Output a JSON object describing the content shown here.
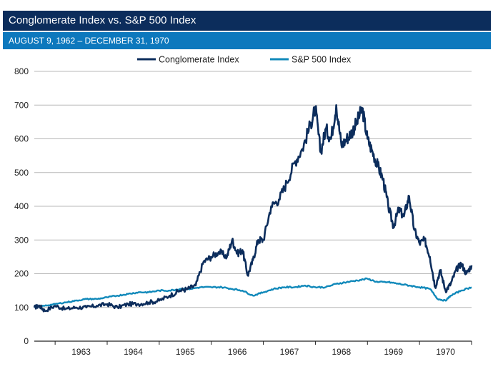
{
  "header": {
    "title": "Conglomerate Index vs. S&P 500 Index",
    "subtitle": "AUGUST 9, 1962 – DECEMBER 31, 1970"
  },
  "chart_data": {
    "type": "line",
    "title": "Conglomerate Index vs. S&P 500 Index",
    "subtitle": "AUGUST 9, 1962 – DECEMBER 31, 1970",
    "xlabel": "",
    "ylabel": "",
    "xlim": [
      1962.6,
      1971.0
    ],
    "ylim": [
      0,
      800
    ],
    "yticks": [
      0,
      100,
      200,
      300,
      400,
      500,
      600,
      700,
      800
    ],
    "xticks": [
      "1963",
      "1964",
      "1965",
      "1966",
      "1967",
      "1968",
      "1969",
      "1970"
    ],
    "grid": true,
    "legend": "top-center",
    "series": [
      {
        "name": "Conglomerate Index",
        "color": "#0c2d5c",
        "x": [
          1962.6,
          1962.7,
          1962.8,
          1963.0,
          1963.2,
          1963.4,
          1963.6,
          1963.8,
          1964.0,
          1964.2,
          1964.4,
          1964.6,
          1964.8,
          1965.0,
          1965.2,
          1965.4,
          1965.55,
          1965.7,
          1965.85,
          1966.0,
          1966.15,
          1966.3,
          1966.4,
          1966.5,
          1966.6,
          1966.7,
          1966.8,
          1966.9,
          1967.0,
          1967.15,
          1967.3,
          1967.45,
          1967.6,
          1967.75,
          1967.9,
          1968.0,
          1968.1,
          1968.2,
          1968.3,
          1968.4,
          1968.5,
          1968.6,
          1968.7,
          1968.8,
          1968.9,
          1969.0,
          1969.1,
          1969.2,
          1969.3,
          1969.4,
          1969.5,
          1969.6,
          1969.7,
          1969.8,
          1969.9,
          1970.0,
          1970.1,
          1970.2,
          1970.3,
          1970.4,
          1970.5,
          1970.6,
          1970.7,
          1970.8,
          1970.9,
          1971.0
        ],
        "values": [
          100,
          105,
          90,
          105,
          95,
          100,
          100,
          105,
          110,
          100,
          110,
          110,
          115,
          120,
          135,
          150,
          155,
          165,
          235,
          250,
          265,
          250,
          300,
          260,
          270,
          195,
          240,
          300,
          300,
          400,
          420,
          470,
          530,
          570,
          640,
          690,
          560,
          630,
          600,
          700,
          580,
          600,
          620,
          650,
          690,
          600,
          560,
          520,
          480,
          400,
          340,
          390,
          370,
          430,
          330,
          290,
          300,
          250,
          160,
          210,
          150,
          170,
          210,
          230,
          200,
          225
        ]
      },
      {
        "name": "S&P 500 Index",
        "color": "#1189ba",
        "x": [
          1962.6,
          1962.8,
          1963.0,
          1963.2,
          1963.4,
          1963.6,
          1963.8,
          1964.0,
          1964.2,
          1964.4,
          1964.6,
          1964.8,
          1965.0,
          1965.2,
          1965.4,
          1965.6,
          1965.8,
          1966.0,
          1966.2,
          1966.4,
          1966.6,
          1966.8,
          1967.0,
          1967.2,
          1967.4,
          1967.6,
          1967.8,
          1968.0,
          1968.2,
          1968.4,
          1968.6,
          1968.8,
          1969.0,
          1969.2,
          1969.4,
          1969.6,
          1969.8,
          1970.0,
          1970.2,
          1970.35,
          1970.5,
          1970.6,
          1970.8,
          1971.0
        ],
        "values": [
          100,
          105,
          110,
          115,
          120,
          125,
          125,
          130,
          135,
          140,
          145,
          145,
          150,
          150,
          155,
          155,
          160,
          160,
          160,
          155,
          150,
          135,
          145,
          155,
          160,
          160,
          165,
          160,
          160,
          170,
          175,
          180,
          185,
          175,
          175,
          170,
          165,
          160,
          155,
          125,
          120,
          135,
          150,
          160
        ]
      }
    ]
  }
}
